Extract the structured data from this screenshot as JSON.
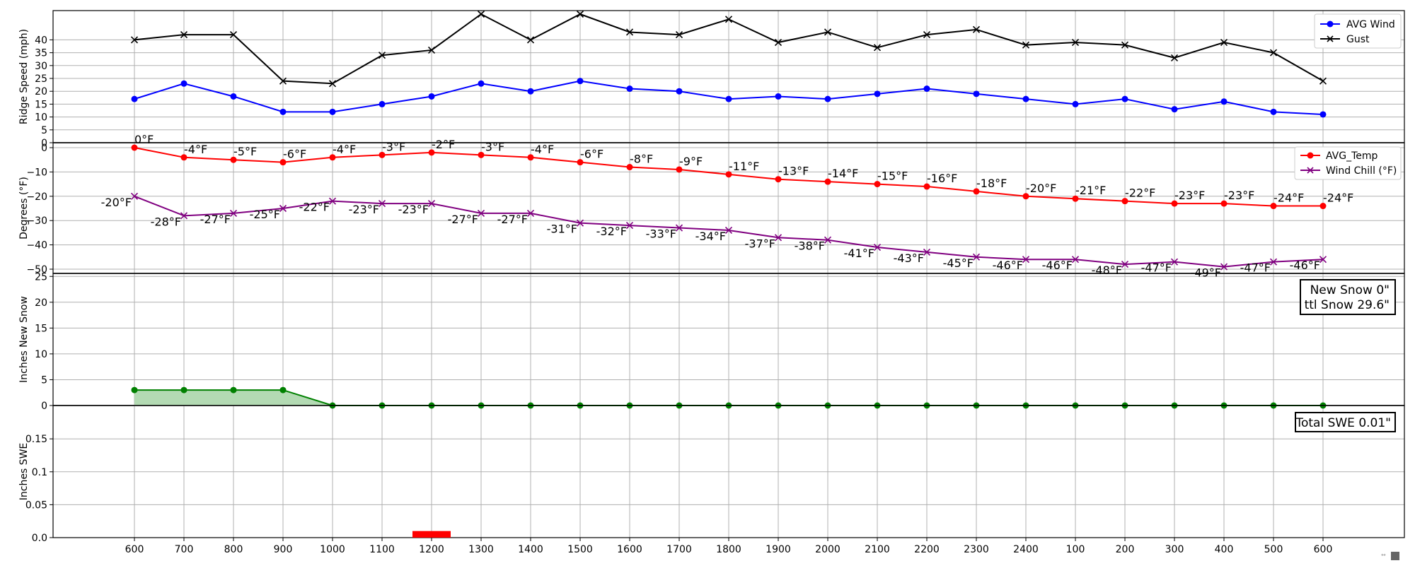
{
  "x_tick_labels": [
    "600",
    "700",
    "800",
    "900",
    "1000",
    "1100",
    "1200",
    "1300",
    "1400",
    "1500",
    "1600",
    "1700",
    "1800",
    "1900",
    "2000",
    "2100",
    "2200",
    "2300",
    "2400",
    "100",
    "200",
    "300",
    "400",
    "500",
    "600"
  ],
  "chart_data": [
    {
      "type": "line",
      "ylabel": "Ridge Speed (mph)",
      "ylim": [
        0,
        50
      ],
      "yticks": [
        "0",
        "5",
        "10",
        "15",
        "20",
        "25",
        "30",
        "35",
        "40"
      ],
      "grid": true,
      "legend_position": "top-right",
      "colors": {
        "avg_wind": "#0000ff",
        "gust": "#000000"
      },
      "series": [
        {
          "name": "AVG Wind",
          "marker": "o",
          "values": [
            17,
            23,
            18,
            12,
            12,
            15,
            18,
            23,
            20,
            24,
            21,
            20,
            17,
            18,
            17,
            19,
            21,
            19,
            17,
            15,
            17,
            13,
            16,
            12,
            11
          ]
        },
        {
          "name": "Gust",
          "marker": "x",
          "values": [
            40,
            42,
            42,
            24,
            23,
            34,
            36,
            50,
            40,
            50,
            43,
            42,
            48,
            39,
            43,
            37,
            42,
            44,
            38,
            39,
            38,
            33,
            39,
            35,
            24
          ]
        }
      ]
    },
    {
      "type": "line",
      "ylabel": "Degrees (°F)",
      "ylim": [
        -50,
        2
      ],
      "yticks": [
        "0",
        "−10",
        "−20",
        "−30",
        "−40",
        "−50"
      ],
      "grid": true,
      "legend_position": "top-right",
      "colors": {
        "avg_temp": "#ff0000",
        "wind_chill": "#800080"
      },
      "series": [
        {
          "name": "AVG_Temp",
          "marker": "o",
          "values": [
            0,
            -4,
            -5,
            -6,
            -4,
            -3,
            -2,
            -3,
            -4,
            -6,
            -8,
            -9,
            -11,
            -13,
            -14,
            -15,
            -16,
            -18,
            -20,
            -21,
            -22,
            -23,
            -23,
            -24,
            -24
          ]
        },
        {
          "name": "Wind Chill (°F)",
          "marker": "x",
          "values": [
            -20,
            -28,
            -27,
            -25,
            -22,
            -23,
            -23,
            -27,
            -27,
            -31,
            -32,
            -33,
            -34,
            -37,
            -38,
            -41,
            -43,
            -45,
            -46,
            -46,
            -48,
            -47,
            -49,
            -47,
            -46
          ]
        }
      ],
      "temp_labels": [
        "0°F",
        "-4°F",
        "-5°F",
        "-6°F",
        "-4°F",
        "-3°F",
        "-2°F",
        "-3°F",
        "-4°F",
        "-6°F",
        "-8°F",
        "-9°F",
        "-11°F",
        "-13°F",
        "-14°F",
        "-15°F",
        "-16°F",
        "-18°F",
        "-20°F",
        "-21°F",
        "-22°F",
        "-23°F",
        "-23°F",
        "-24°F",
        "-24°F"
      ],
      "chill_labels": [
        "-20°F",
        "-28°F",
        "-27°F",
        "-25°F",
        "-22°F",
        "-23°F",
        "-23°F",
        "-27°F",
        "-27°F",
        "-31°F",
        "-32°F",
        "-33°F",
        "-34°F",
        "-37°F",
        "-38°F",
        "-41°F",
        "-43°F",
        "-45°F",
        "-46°F",
        "-46°F",
        "-48°F",
        "-47°F",
        "-49°F",
        "-47°F",
        "-46°F"
      ]
    },
    {
      "type": "area",
      "ylabel": "Inches New Snow",
      "ylim": [
        0,
        25
      ],
      "yticks": [
        "0",
        "5",
        "10",
        "15",
        "20",
        "25"
      ],
      "grid": true,
      "colors": {
        "line": "#008000",
        "fill": "#b3dab3"
      },
      "series": [
        {
          "values": [
            3,
            3,
            3,
            3,
            0,
            0,
            0,
            0,
            0,
            0,
            0,
            0,
            0,
            0,
            0,
            0,
            0,
            0,
            0,
            0,
            0,
            0,
            0,
            0,
            0
          ]
        }
      ],
      "annotation": [
        "New Snow 0\"",
        "ttl Snow 29.6\""
      ]
    },
    {
      "type": "bar",
      "ylabel": "Inches SWE",
      "ylim": [
        0,
        0.2
      ],
      "yticks": [
        "0.0",
        "0.05",
        "0.1",
        "0.15"
      ],
      "grid": true,
      "colors": {
        "bar": "#ff0000"
      },
      "series": [
        {
          "values": [
            0,
            0,
            0,
            0,
            0,
            0,
            0.01,
            0,
            0,
            0,
            0,
            0,
            0,
            0,
            0,
            0,
            0,
            0,
            0,
            0,
            0,
            0,
            0,
            0,
            0
          ]
        }
      ],
      "annotation": [
        "Total SWE 0.01\""
      ]
    }
  ]
}
